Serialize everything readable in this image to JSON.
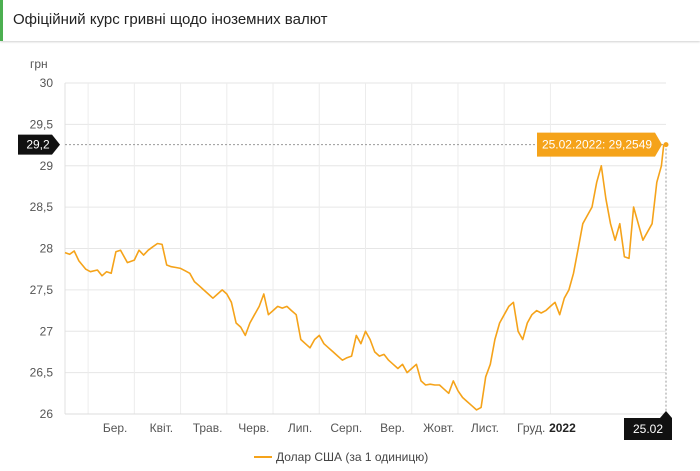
{
  "header": {
    "title": "Офіційний курс гривні щодо іноземних валют"
  },
  "chart_data": {
    "type": "line",
    "title": "",
    "ylabel": "грн",
    "xlabel": "",
    "ylim": [
      26,
      30
    ],
    "yticks": [
      "30",
      "29,5",
      "29",
      "28,5",
      "28",
      "27,5",
      "27",
      "26,5",
      "26"
    ],
    "x_tick_labels": [
      "Бер.",
      "Квіт.",
      "Трав.",
      "Черв.",
      "Лип.",
      "Серп.",
      "Вер.",
      "Жовт.",
      "Лист.",
      "Груд.",
      "2022"
    ],
    "cursor": {
      "y_label": "29,2",
      "x_label": "25.02",
      "tooltip": "25.02.2022: 29,2549"
    },
    "legend": "top-none-bottom-center",
    "series": [
      {
        "name": "Долар США (за 1 одиницю)",
        "color": "#f5a31a",
        "x_months": [
          0,
          0.1,
          0.2,
          0.3,
          0.45,
          0.55,
          0.7,
          0.8,
          0.9,
          1.0,
          1.1,
          1.2,
          1.35,
          1.5,
          1.6,
          1.7,
          1.8,
          1.9,
          2.0,
          2.1,
          2.2,
          2.3,
          2.4,
          2.5,
          2.6,
          2.7,
          2.8,
          2.9,
          3.0,
          3.1,
          3.2,
          3.3,
          3.4,
          3.5,
          3.6,
          3.7,
          3.8,
          3.9,
          4.0,
          4.1,
          4.2,
          4.3,
          4.4,
          4.5,
          4.6,
          4.7,
          4.8,
          4.9,
          5.0,
          5.1,
          5.2,
          5.3,
          5.4,
          5.5,
          5.6,
          5.7,
          5.8,
          5.9,
          6.0,
          6.1,
          6.2,
          6.3,
          6.4,
          6.5,
          6.6,
          6.7,
          6.8,
          6.9,
          7.0,
          7.1,
          7.2,
          7.3,
          7.4,
          7.5,
          7.6,
          7.7,
          7.8,
          7.9,
          8.0,
          8.1,
          8.2,
          8.3,
          8.4,
          8.5,
          8.6,
          8.7,
          8.8,
          8.9,
          9.0,
          9.1,
          9.2,
          9.3,
          9.4,
          9.5,
          9.6,
          9.7,
          9.8,
          9.9,
          10.0,
          10.1,
          10.2,
          10.3,
          10.4,
          10.5,
          10.6,
          10.7,
          10.8,
          10.9,
          11.0,
          11.1,
          11.2,
          11.3,
          11.4,
          11.5,
          11.6,
          11.7,
          11.8,
          11.9,
          12.0,
          12.1,
          12.2,
          12.3,
          12.5,
          12.7,
          12.8,
          12.9,
          12.95,
          13.0
        ],
        "values": [
          27.95,
          27.93,
          27.97,
          27.85,
          27.75,
          27.72,
          27.74,
          27.67,
          27.72,
          27.7,
          27.96,
          27.98,
          27.83,
          27.86,
          27.98,
          27.92,
          27.98,
          28.02,
          28.06,
          28.05,
          27.8,
          27.78,
          27.77,
          27.76,
          27.73,
          27.7,
          27.6,
          27.55,
          27.5,
          27.45,
          27.4,
          27.45,
          27.5,
          27.45,
          27.35,
          27.1,
          27.05,
          26.95,
          27.1,
          27.2,
          27.3,
          27.45,
          27.2,
          27.25,
          27.3,
          27.28,
          27.3,
          27.25,
          27.2,
          26.9,
          26.85,
          26.8,
          26.9,
          26.95,
          26.85,
          26.8,
          26.75,
          26.7,
          26.65,
          26.68,
          26.7,
          26.95,
          26.85,
          27.0,
          26.9,
          26.75,
          26.7,
          26.72,
          26.65,
          26.6,
          26.55,
          26.6,
          26.5,
          26.55,
          26.6,
          26.4,
          26.35,
          26.36,
          26.35,
          26.35,
          26.3,
          26.25,
          26.4,
          26.28,
          26.2,
          26.15,
          26.1,
          26.05,
          26.08,
          26.45,
          26.6,
          26.9,
          27.1,
          27.2,
          27.3,
          27.35,
          27.0,
          26.9,
          27.1,
          27.2,
          27.25,
          27.22,
          27.25,
          27.3,
          27.35,
          27.2,
          27.4,
          27.5,
          27.7,
          28.0,
          28.3,
          28.4,
          28.5,
          28.8,
          29.0,
          28.6,
          28.3,
          28.1,
          28.3,
          27.9,
          27.88,
          28.5,
          28.1,
          28.3,
          28.8,
          29.0,
          29.25,
          29.2549
        ]
      }
    ]
  }
}
